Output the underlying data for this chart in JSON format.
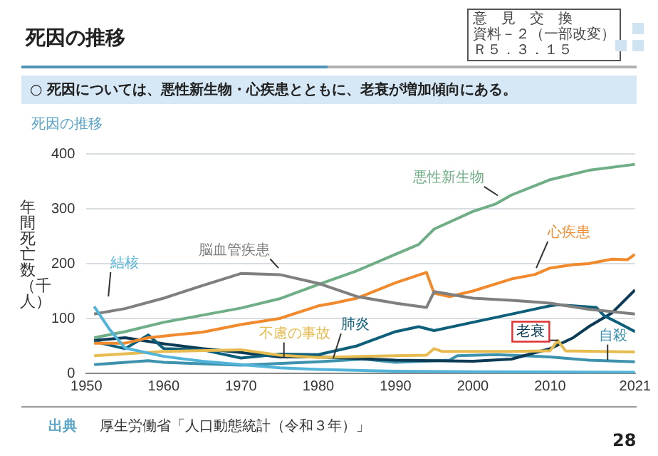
{
  "chart_data": {
    "type": "line",
    "title": "死因の推移",
    "subtitle": "○ 死因については、悪性新生物・心疾患とともに、老衰が増加傾向にある。",
    "ylabel": "年間死亡数（千人）",
    "annotations": [
      "意　見　交　換",
      "資料－２（一部改変）",
      "Ｒ５．３．１５",
      "死因の推移",
      "出典",
      "厚生労働省「人口動態統計（令和３年）」",
      "28"
    ],
    "xlim": [
      1950,
      2021
    ],
    "xticks": [
      1950,
      1960,
      1970,
      1980,
      1990,
      2000,
      2010,
      2021
    ],
    "ylim": [
      0,
      400
    ],
    "yticks": [
      0,
      100,
      200,
      300,
      400
    ],
    "grid": "y",
    "legend": false,
    "marker": "none",
    "series": [
      {
        "name": "結核",
        "color": "#53b4d9",
        "x": [
          1951,
          1953,
          1955,
          1960,
          1965,
          1970,
          1975,
          1980,
          1990,
          2000,
          2021
        ],
        "values": [
          122,
          80,
          46,
          31,
          22,
          16,
          10,
          7,
          4,
          3,
          2
        ]
      },
      {
        "name": "脳血管疾患",
        "color": "#7f7f7f",
        "x": [
          1951,
          1955,
          1960,
          1965,
          1970,
          1975,
          1980,
          1985,
          1990,
          1994,
          1995,
          2000,
          2005,
          2010,
          2015,
          2021
        ],
        "values": [
          108,
          118,
          137,
          160,
          182,
          180,
          164,
          140,
          128,
          120,
          149,
          137,
          133,
          128,
          117,
          108
        ]
      },
      {
        "name": "悪性新生物",
        "color": "#6fae86",
        "x": [
          1951,
          1955,
          1960,
          1965,
          1970,
          1975,
          1980,
          1985,
          1990,
          1993,
          1995,
          2000,
          2003,
          2005,
          2010,
          2015,
          2021
        ],
        "values": [
          65,
          76,
          93,
          106,
          119,
          136,
          162,
          187,
          217,
          235,
          263,
          295,
          309,
          325,
          353,
          370,
          381
        ]
      },
      {
        "name": "心疾患",
        "color": "#f08a2c",
        "x": [
          1951,
          1955,
          1958,
          1960,
          1965,
          1970,
          1975,
          1980,
          1982,
          1985,
          1990,
          1994,
          1995,
          1997,
          2000,
          2005,
          2008,
          2010,
          2013,
          2015,
          2018,
          2020,
          2021
        ],
        "values": [
          55,
          55,
          65,
          68,
          75,
          89,
          100,
          123,
          128,
          137,
          165,
          184,
          146,
          140,
          150,
          172,
          180,
          192,
          198,
          200,
          208,
          207,
          217
        ]
      },
      {
        "name": "不慮の事故",
        "color": "#e6bb4f",
        "x": [
          1951,
          1960,
          1970,
          1975,
          1980,
          1990,
          1994,
          1995,
          1996,
          2005,
          2010,
          2011,
          2012,
          2021
        ],
        "values": [
          32,
          40,
          43,
          33,
          29,
          32,
          33,
          45,
          40,
          40,
          41,
          60,
          41,
          39
        ]
      },
      {
        "name": "肺炎",
        "color": "#0e5f7a",
        "x": [
          1951,
          1955,
          1958,
          1960,
          1965,
          1970,
          1975,
          1980,
          1985,
          1990,
          1993,
          1995,
          2000,
          2005,
          2010,
          2011,
          2016,
          2017,
          2019,
          2021
        ],
        "values": [
          58,
          45,
          70,
          45,
          43,
          28,
          35,
          34,
          50,
          76,
          85,
          78,
          93,
          108,
          123,
          125,
          120,
          105,
          91,
          76
        ]
      },
      {
        "name": "老衰",
        "color": "#0b3b55",
        "x": [
          1951,
          1955,
          1960,
          1965,
          1970,
          1975,
          1980,
          1990,
          2000,
          2005,
          2010,
          2013,
          2015,
          2018,
          2021
        ],
        "values": [
          60,
          65,
          54,
          45,
          38,
          30,
          30,
          24,
          22,
          26,
          45,
          65,
          85,
          110,
          152
        ]
      },
      {
        "name": "自殺",
        "color": "#3d92ad",
        "x": [
          1951,
          1958,
          1960,
          1970,
          1980,
          1986,
          1990,
          1997,
          1998,
          2003,
          2010,
          2015,
          2021
        ],
        "values": [
          16,
          23,
          20,
          15,
          21,
          26,
          20,
          24,
          32,
          34,
          30,
          24,
          21
        ]
      }
    ]
  }
}
